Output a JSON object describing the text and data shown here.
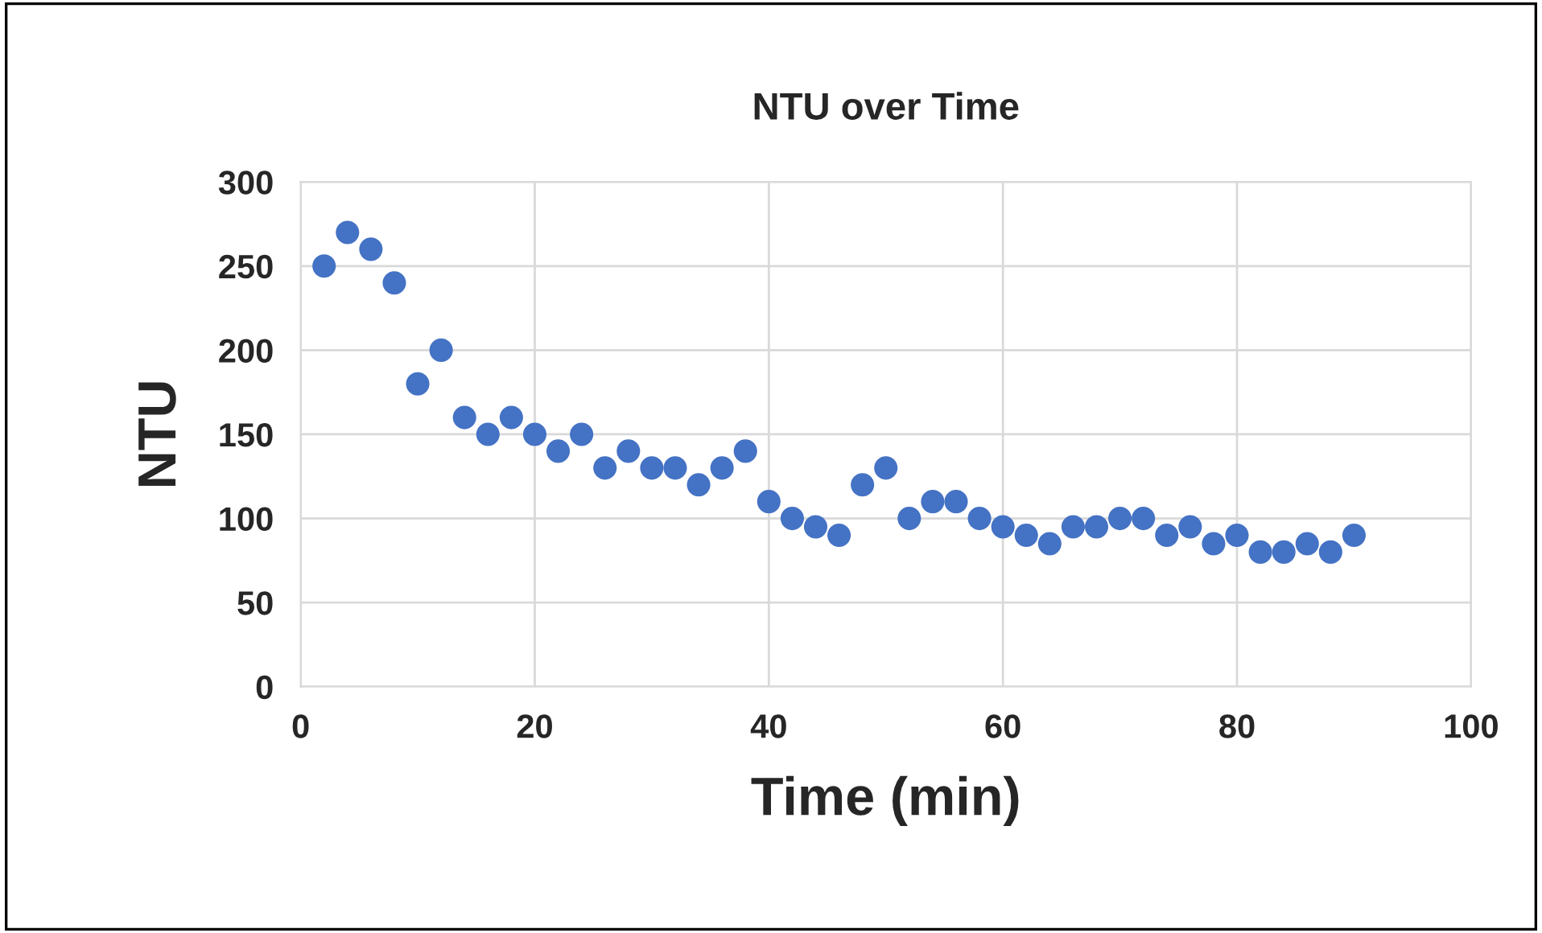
{
  "chart_data": {
    "type": "scatter",
    "title": "NTU over Time",
    "xlabel": "Time (min)",
    "ylabel": "NTU",
    "x": [
      2,
      4,
      6,
      8,
      10,
      12,
      14,
      16,
      18,
      20,
      22,
      24,
      26,
      28,
      30,
      32,
      34,
      36,
      38,
      40,
      42,
      44,
      46,
      48,
      50,
      52,
      54,
      56,
      58,
      60,
      62,
      64,
      66,
      68,
      70,
      72,
      74,
      76,
      78,
      80,
      82,
      84,
      86,
      88,
      90
    ],
    "values": [
      250,
      270,
      260,
      240,
      180,
      200,
      160,
      150,
      160,
      150,
      140,
      150,
      130,
      140,
      130,
      130,
      120,
      130,
      140,
      110,
      100,
      95,
      90,
      120,
      130,
      100,
      110,
      110,
      100,
      95,
      90,
      85,
      95,
      95,
      100,
      100,
      90,
      95,
      85,
      90,
      80,
      80,
      85,
      80,
      90
    ],
    "color": "#4472c4",
    "marker": "circle",
    "xlim": [
      0,
      100
    ],
    "xticks": [
      0,
      20,
      40,
      60,
      80,
      100
    ],
    "ylim": [
      0,
      300
    ],
    "yticks": [
      0,
      50,
      100,
      150,
      200,
      250,
      300
    ],
    "grid": true
  }
}
